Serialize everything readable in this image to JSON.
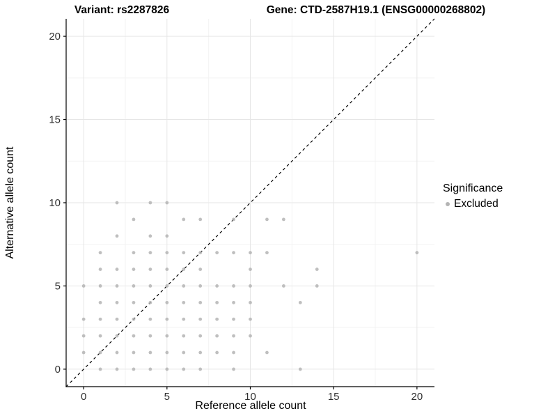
{
  "chart_data": {
    "type": "scatter",
    "title_left": "Variant: rs2287826",
    "title_right": "Gene: CTD-2587H19.1 (ENSG00000268802)",
    "xlabel": "Reference allele count",
    "ylabel": "Alternative allele count",
    "xlim": [
      -1.05,
      21.05
    ],
    "ylim": [
      -1.05,
      21.05
    ],
    "x_ticks": [
      0,
      5,
      10,
      15,
      20
    ],
    "minor_ticks": [
      2.5,
      7.5,
      12.5,
      17.5
    ],
    "y_ticks": [
      0,
      5,
      10,
      15,
      20
    ],
    "grid": true,
    "colors": {
      "point": "#b4b4b4",
      "grid_major": "#e6e6e6",
      "grid_minor": "#f3f3f3",
      "axis_line": "#000000",
      "tick_label": "#303030",
      "reference_line": "#000000"
    },
    "reference_line": {
      "style": "dashed",
      "slope": 1,
      "intercept": 0
    },
    "legend": {
      "title": "Significance",
      "position": "right",
      "entries": [
        {
          "label": "Excluded",
          "color": "#b4b4b4"
        }
      ]
    },
    "series": [
      {
        "name": "Excluded",
        "points": [
          [
            2,
            10
          ],
          [
            4,
            10
          ],
          [
            5,
            10
          ],
          [
            3,
            9
          ],
          [
            6,
            9
          ],
          [
            7,
            9
          ],
          [
            9,
            9
          ],
          [
            11,
            9
          ],
          [
            12,
            9
          ],
          [
            2,
            8
          ],
          [
            4,
            8
          ],
          [
            5,
            8
          ],
          [
            1,
            7
          ],
          [
            3,
            7
          ],
          [
            4,
            7
          ],
          [
            5,
            7
          ],
          [
            6,
            7
          ],
          [
            7,
            7
          ],
          [
            8,
            7
          ],
          [
            9,
            7
          ],
          [
            10,
            7
          ],
          [
            11,
            7
          ],
          [
            20,
            7
          ],
          [
            1,
            6
          ],
          [
            2,
            6
          ],
          [
            3,
            6
          ],
          [
            4,
            6
          ],
          [
            5,
            6
          ],
          [
            6,
            6
          ],
          [
            7,
            6
          ],
          [
            10,
            6
          ],
          [
            14,
            6
          ],
          [
            0,
            5
          ],
          [
            1,
            5
          ],
          [
            2,
            5
          ],
          [
            3,
            5
          ],
          [
            4,
            5
          ],
          [
            5,
            5
          ],
          [
            6,
            5
          ],
          [
            7,
            5
          ],
          [
            8,
            5
          ],
          [
            9,
            5
          ],
          [
            10,
            5
          ],
          [
            12,
            5
          ],
          [
            14,
            5
          ],
          [
            1,
            4
          ],
          [
            2,
            4
          ],
          [
            3,
            4
          ],
          [
            4,
            4
          ],
          [
            5,
            4
          ],
          [
            6,
            4
          ],
          [
            7,
            4
          ],
          [
            8,
            4
          ],
          [
            9,
            4
          ],
          [
            10,
            4
          ],
          [
            13,
            4
          ],
          [
            0,
            3
          ],
          [
            1,
            3
          ],
          [
            2,
            3
          ],
          [
            3,
            3
          ],
          [
            4,
            3
          ],
          [
            5,
            3
          ],
          [
            6,
            3
          ],
          [
            7,
            3
          ],
          [
            8,
            3
          ],
          [
            9,
            3
          ],
          [
            10,
            3
          ],
          [
            0,
            2
          ],
          [
            1,
            2
          ],
          [
            2,
            2
          ],
          [
            3,
            2
          ],
          [
            4,
            2
          ],
          [
            5,
            2
          ],
          [
            6,
            2
          ],
          [
            7,
            2
          ],
          [
            8,
            2
          ],
          [
            9,
            2
          ],
          [
            10,
            2
          ],
          [
            0,
            1
          ],
          [
            1,
            1
          ],
          [
            2,
            1
          ],
          [
            3,
            1
          ],
          [
            4,
            1
          ],
          [
            5,
            1
          ],
          [
            6,
            1
          ],
          [
            7,
            1
          ],
          [
            8,
            1
          ],
          [
            9,
            1
          ],
          [
            11,
            1
          ],
          [
            1,
            0
          ],
          [
            2,
            0
          ],
          [
            3,
            0
          ],
          [
            4,
            0
          ],
          [
            5,
            0
          ],
          [
            6,
            0
          ],
          [
            7,
            0
          ],
          [
            9,
            0
          ],
          [
            13,
            0
          ]
        ]
      }
    ]
  }
}
